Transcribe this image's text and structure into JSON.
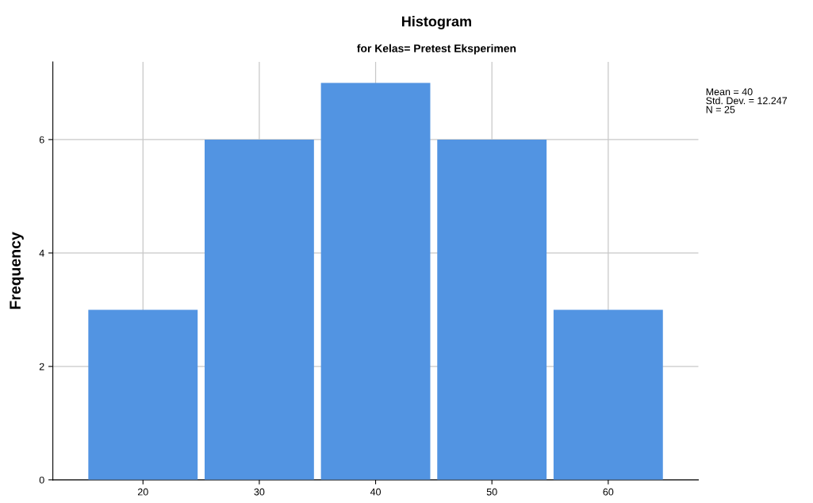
{
  "chart_data": {
    "type": "histogram",
    "title": "Histogram",
    "subtitle": "for Kelas= Pretest Eksperimen",
    "ylabel": "Frequency",
    "bins": [
      15,
      25,
      35,
      45,
      55,
      65
    ],
    "values": [
      3,
      6,
      7,
      6,
      3
    ],
    "color": "#5294e2",
    "xlim": [
      12.25,
      67.75
    ],
    "xticks": [
      20,
      30,
      40,
      50,
      60
    ],
    "ylim": [
      0,
      7.37
    ],
    "yticks": [
      0,
      2,
      4,
      6
    ],
    "grid": true,
    "annotations": [
      "Mean = 40\nStd. Dev. = 12.247\nN = 25"
    ]
  }
}
